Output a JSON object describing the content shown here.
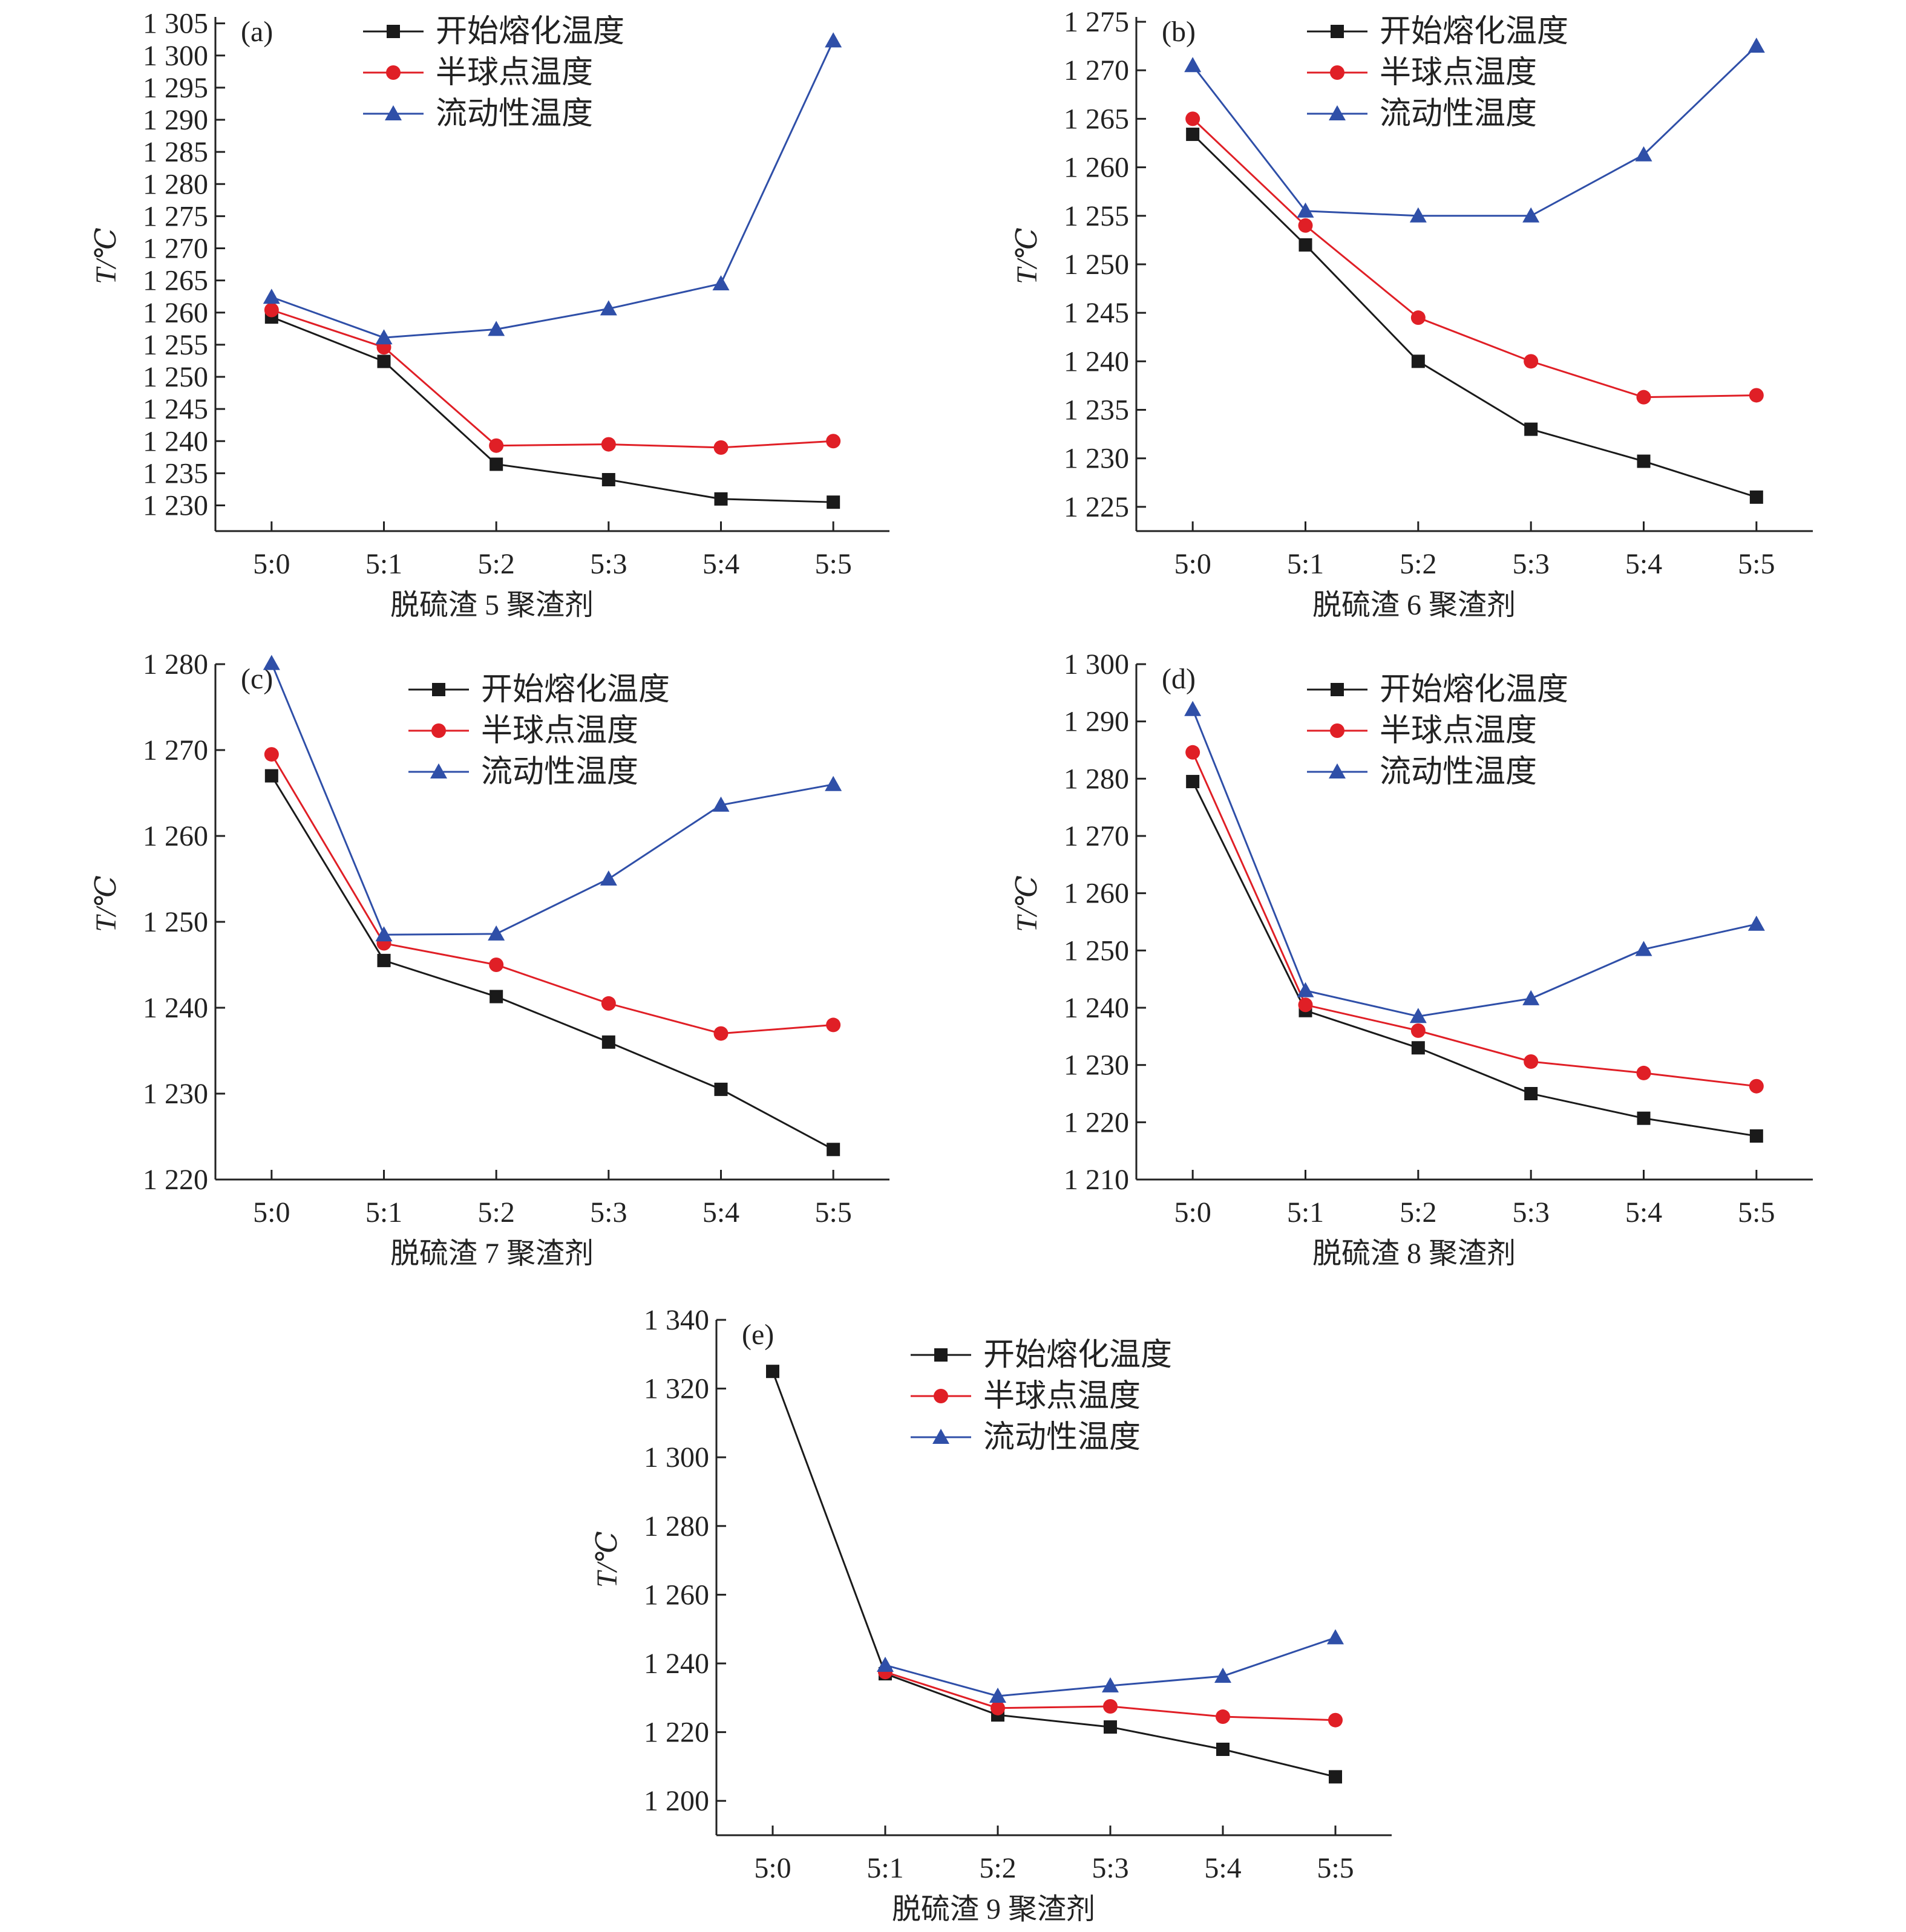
{
  "legend_labels": [
    "开始熔化温度",
    "半球点温度",
    "流动性温度"
  ],
  "series_colors": [
    "#1a1a1a",
    "#e01f26",
    "#2f4fa8"
  ],
  "marker_shapes": [
    "square",
    "circle",
    "triangle"
  ],
  "chart_data": [
    {
      "type": "line",
      "panel_label": "(a)",
      "xlabel": "脱硫渣 5 聚渣剂",
      "ylabel": "T/℃",
      "categories": [
        "5:0",
        "5:1",
        "5:2",
        "5:3",
        "5:4",
        "5:5"
      ],
      "ylim": [
        1226,
        1306
      ],
      "yticks": [
        1230,
        1235,
        1240,
        1245,
        1250,
        1255,
        1260,
        1265,
        1270,
        1275,
        1280,
        1285,
        1290,
        1295,
        1300,
        1305
      ],
      "ytick_labels": [
        "1 230",
        "1 235",
        "1 240",
        "1 245",
        "1 250",
        "1 255",
        "1 260",
        "1 265",
        "1 270",
        "1 275",
        "1 280",
        "1 285",
        "1 290",
        "1 295",
        "1 300",
        "1 305"
      ],
      "legend_position": "top",
      "series": [
        {
          "name": "开始熔化温度",
          "values": [
            1259.3,
            1252.4,
            1236.4,
            1234.0,
            1231.0,
            1230.5
          ]
        },
        {
          "name": "半球点温度",
          "values": [
            1260.4,
            1254.6,
            1239.3,
            1239.5,
            1239.0,
            1240.0
          ]
        },
        {
          "name": "流动性温度",
          "values": [
            1262.4,
            1256.1,
            1257.4,
            1260.6,
            1264.5,
            1302.3
          ]
        }
      ]
    },
    {
      "type": "line",
      "panel_label": "(b)",
      "xlabel": "脱硫渣 6 聚渣剂",
      "ylabel": "T/℃",
      "categories": [
        "5:0",
        "5:1",
        "5:2",
        "5:3",
        "5:4",
        "5:5"
      ],
      "ylim": [
        1222.5,
        1275.5
      ],
      "yticks": [
        1225,
        1230,
        1235,
        1240,
        1245,
        1250,
        1255,
        1260,
        1265,
        1270,
        1275
      ],
      "ytick_labels": [
        "1 225",
        "1 230",
        "1 235",
        "1 240",
        "1 245",
        "1 250",
        "1 255",
        "1 260",
        "1 265",
        "1 270",
        "1 275"
      ],
      "legend_position": "top",
      "series": [
        {
          "name": "开始熔化温度",
          "values": [
            1263.4,
            1252.0,
            1240.0,
            1233.0,
            1229.7,
            1226.0
          ]
        },
        {
          "name": "半球点温度",
          "values": [
            1265.0,
            1254.0,
            1244.5,
            1240.0,
            1236.3,
            1236.5
          ]
        },
        {
          "name": "流动性温度",
          "values": [
            1270.5,
            1255.5,
            1255.0,
            1255.0,
            1261.3,
            1272.5
          ]
        }
      ]
    },
    {
      "type": "line",
      "panel_label": "(c)",
      "xlabel": "脱硫渣 7 聚渣剂",
      "ylabel": "T/℃",
      "categories": [
        "5:0",
        "5:1",
        "5:2",
        "5:3",
        "5:4",
        "5:5"
      ],
      "ylim": [
        1220,
        1280
      ],
      "yticks": [
        1220,
        1230,
        1240,
        1250,
        1260,
        1270,
        1280
      ],
      "ytick_labels": [
        "1 220",
        "1 230",
        "1 240",
        "1 250",
        "1 260",
        "1 270",
        "1 280"
      ],
      "legend_position": "top",
      "series": [
        {
          "name": "开始熔化温度",
          "values": [
            1267.0,
            1245.5,
            1241.3,
            1236.0,
            1230.5,
            1223.5
          ]
        },
        {
          "name": "半球点温度",
          "values": [
            1269.5,
            1247.5,
            1245.0,
            1240.5,
            1237.0,
            1238.0
          ]
        },
        {
          "name": "流动性温度",
          "values": [
            1280.1,
            1248.5,
            1248.6,
            1255.0,
            1263.6,
            1266.0
          ]
        }
      ]
    },
    {
      "type": "line",
      "panel_label": "(d)",
      "xlabel": "脱硫渣 8 聚渣剂",
      "ylabel": "T/℃",
      "categories": [
        "5:0",
        "5:1",
        "5:2",
        "5:3",
        "5:4",
        "5:5"
      ],
      "ylim": [
        1210,
        1300
      ],
      "yticks": [
        1210,
        1220,
        1230,
        1240,
        1250,
        1260,
        1270,
        1280,
        1290,
        1300
      ],
      "ytick_labels": [
        "1 210",
        "1 220",
        "1 230",
        "1 240",
        "1 250",
        "1 260",
        "1 270",
        "1 280",
        "1 290",
        "1 300"
      ],
      "legend_position": "top",
      "series": [
        {
          "name": "开始熔化温度",
          "values": [
            1279.5,
            1239.5,
            1233.0,
            1225.0,
            1220.7,
            1217.6
          ]
        },
        {
          "name": "半球点温度",
          "values": [
            1284.6,
            1240.5,
            1236.0,
            1230.6,
            1228.6,
            1226.3
          ]
        },
        {
          "name": "流动性温度",
          "values": [
            1292.1,
            1243.0,
            1238.5,
            1241.6,
            1250.2,
            1254.6
          ]
        }
      ]
    },
    {
      "type": "line",
      "panel_label": "(e)",
      "xlabel": "脱硫渣 9 聚渣剂",
      "ylabel": "T/℃",
      "categories": [
        "5:0",
        "5:1",
        "5:2",
        "5:3",
        "5:4",
        "5:5"
      ],
      "ylim": [
        1190,
        1340
      ],
      "yticks": [
        1200,
        1220,
        1240,
        1260,
        1280,
        1300,
        1320,
        1340
      ],
      "ytick_labels": [
        "1 200",
        "1 220",
        "1 240",
        "1 260",
        "1 280",
        "1 300",
        "1 320",
        "1 340"
      ],
      "legend_position": "top",
      "series": [
        {
          "name": "开始熔化温度",
          "values": [
            1325.0,
            1237.0,
            1225.0,
            1221.5,
            1215.0,
            1207.0
          ]
        },
        {
          "name": "半球点温度",
          "values": [
            null,
            1237.5,
            1227.0,
            1227.5,
            1224.5,
            1223.5
          ]
        },
        {
          "name": "流动性温度",
          "values": [
            null,
            1239.5,
            1230.5,
            1233.5,
            1236.3,
            1247.5
          ]
        }
      ]
    }
  ]
}
